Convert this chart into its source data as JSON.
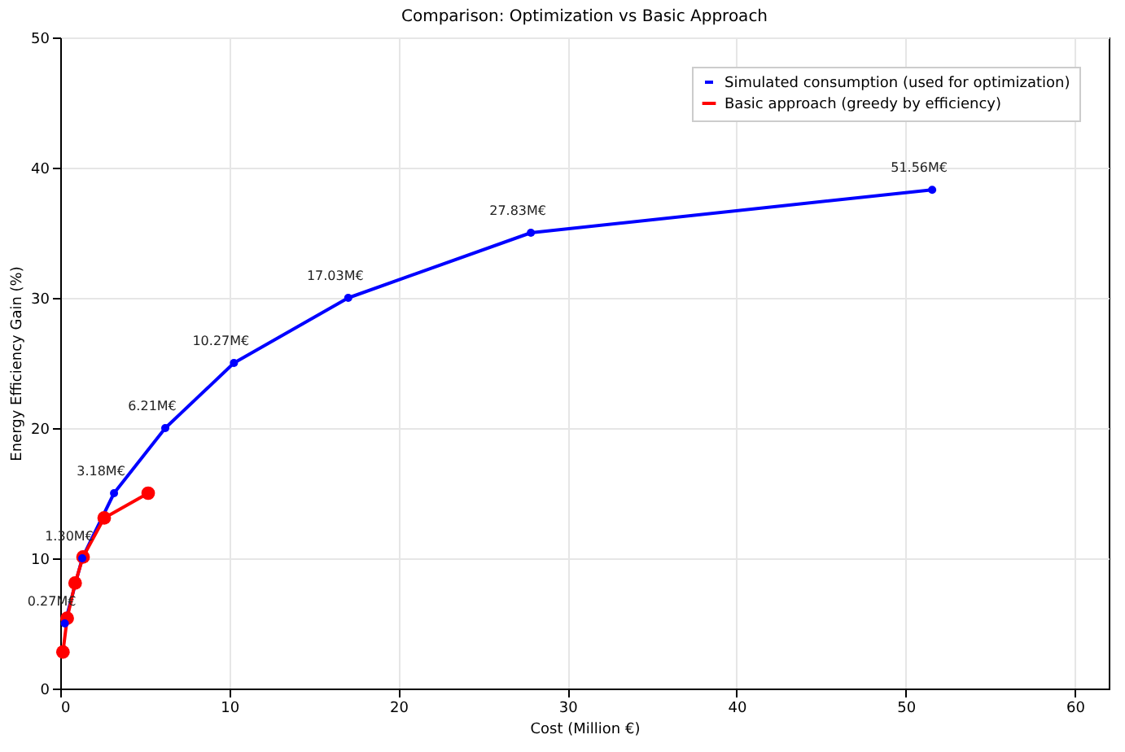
{
  "chart_data": {
    "type": "line",
    "title": "Comparison: Optimization vs Basic Approach",
    "xlabel": "Cost (Million €)",
    "ylabel": "Energy Efficiency Gain (%)",
    "xlim": [
      0,
      62
    ],
    "xticks": [
      0,
      10,
      20,
      30,
      40,
      50,
      60
    ],
    "ylim": [
      0,
      50
    ],
    "yticks": [
      0,
      10,
      20,
      30,
      40,
      50
    ],
    "grid": true,
    "legend": "top right",
    "marker": "circle",
    "line_style": "solid",
    "series": [
      {
        "name": "Simulated consumption (used for optimization)",
        "color": "#0000ff",
        "x": [
          0.27,
          1.3,
          3.18,
          6.21,
          10.27,
          17.03,
          27.83,
          51.56
        ],
        "values": [
          5,
          10,
          15,
          20,
          25,
          30,
          35,
          38.3
        ]
      },
      {
        "name": "Basic approach (greedy by efficiency)",
        "color": "#ff0000",
        "x": [
          0.16,
          0.41,
          0.88,
          1.35,
          2.6,
          5.2
        ],
        "values": [
          2.8,
          5.4,
          8.1,
          10.1,
          13.1,
          15.0
        ]
      }
    ],
    "annotations": [
      {
        "text": "0.27M€",
        "x": 0.27,
        "y": 5
      },
      {
        "text": "1.30M€",
        "x": 1.3,
        "y": 10
      },
      {
        "text": "3.18M€",
        "x": 3.18,
        "y": 15
      },
      {
        "text": "6.21M€",
        "x": 6.21,
        "y": 20
      },
      {
        "text": "10.27M€",
        "x": 10.27,
        "y": 25
      },
      {
        "text": "17.03M€",
        "x": 17.03,
        "y": 30
      },
      {
        "text": "27.83M€",
        "x": 27.83,
        "y": 35
      },
      {
        "text": "51.56M€",
        "x": 51.56,
        "y": 38.3
      }
    ]
  }
}
